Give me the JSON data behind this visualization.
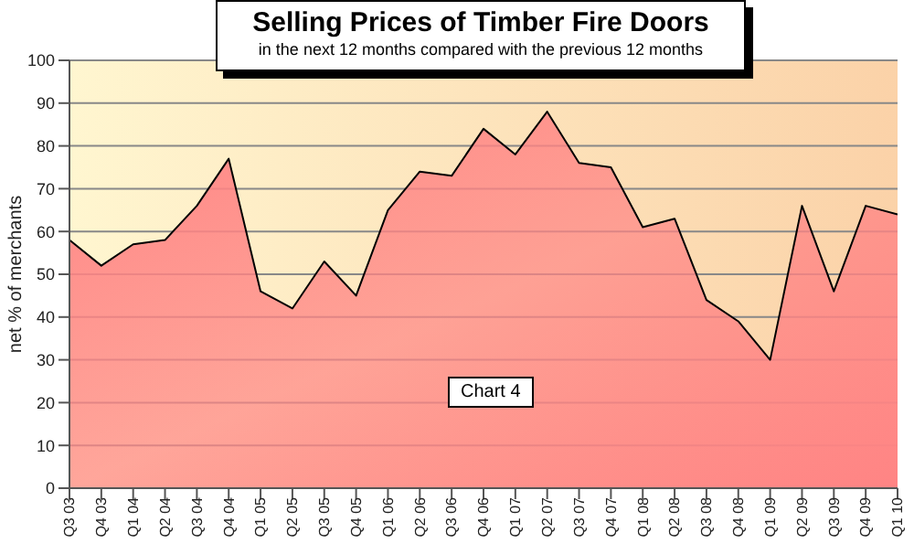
{
  "chart_data": {
    "type": "area",
    "title": "Selling Prices of Timber Fire Doors",
    "subtitle": "in the next 12 months compared with the previous 12 months",
    "ylabel": "net % of merchants",
    "categories": [
      "Q3 03",
      "Q4 03",
      "Q1 04",
      "Q2 04",
      "Q3 04",
      "Q4 04",
      "Q1 05",
      "Q2 05",
      "Q3 05",
      "Q4 05",
      "Q1 06",
      "Q2 06",
      "Q3 06",
      "Q4 06",
      "Q1 07",
      "Q2 07",
      "Q3 07",
      "Q4 07",
      "Q1 08",
      "Q2 08",
      "Q3 08",
      "Q4 08",
      "Q1 09",
      "Q2 09",
      "Q3 09",
      "Q4 09",
      "Q1 10"
    ],
    "series": [
      {
        "color": "#ff8484",
        "values": [
          58,
          52,
          57,
          58,
          66,
          77,
          46,
          42,
          53,
          45,
          65,
          74,
          73,
          84,
          78,
          88,
          76,
          75,
          61,
          63,
          44,
          39,
          30,
          66,
          46,
          66,
          64
        ]
      }
    ],
    "ylim": [
      0,
      100
    ],
    "yticks": [
      0,
      10,
      20,
      30,
      40,
      50,
      60,
      70,
      80,
      90,
      100
    ],
    "grid": "y",
    "legend": false,
    "annotations": [
      "Chart 4"
    ]
  }
}
